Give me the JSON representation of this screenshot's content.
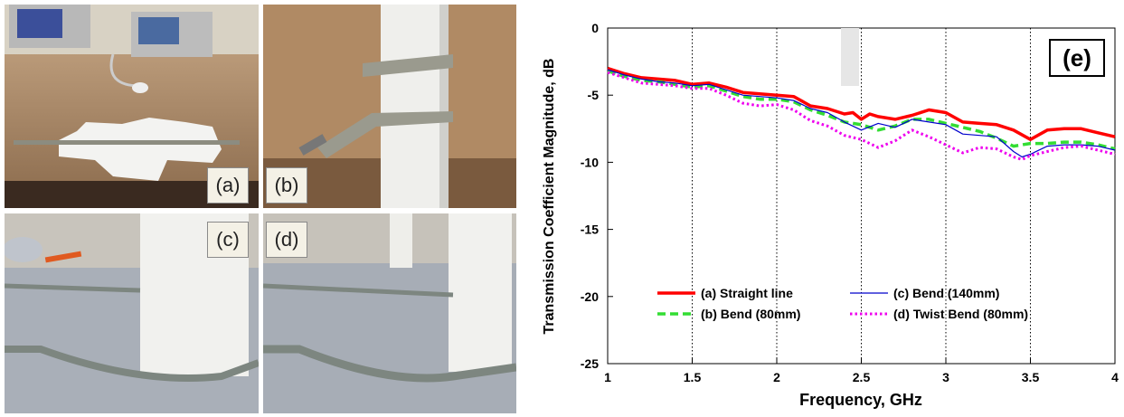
{
  "panels": [
    {
      "label": "(a)",
      "icon": "straight-line-setup-photo"
    },
    {
      "label": "(b)",
      "icon": "bend-80mm-photo"
    },
    {
      "label": "(c)",
      "icon": "bend-140mm-photo"
    },
    {
      "label": "(d)",
      "icon": "twist-bend-photo"
    }
  ],
  "chart_data": {
    "type": "line",
    "title": "",
    "panel_label": "(e)",
    "xlabel": "Frequency, GHz",
    "ylabel": "Transmission Coefficient Magnitude, dB",
    "xlim": [
      1,
      4
    ],
    "ylim": [
      -25,
      0
    ],
    "xticks": [
      "1",
      "1.5",
      "2",
      "2.5",
      "3",
      "3.5",
      "4"
    ],
    "yticks": [
      "0",
      "-5",
      "-10",
      "-15",
      "-20",
      "-25"
    ],
    "grid": "vertical dotted",
    "legend_placement": "lower-center",
    "series": [
      {
        "name": "(a) Straight line",
        "color": "#ff0000",
        "style": "solid-thick",
        "x": [
          1.0,
          1.1,
          1.2,
          1.3,
          1.4,
          1.5,
          1.6,
          1.7,
          1.8,
          1.9,
          2.0,
          2.1,
          2.2,
          2.3,
          2.4,
          2.45,
          2.5,
          2.55,
          2.6,
          2.7,
          2.8,
          2.9,
          3.0,
          3.1,
          3.2,
          3.3,
          3.4,
          3.5,
          3.6,
          3.7,
          3.8,
          3.9,
          4.0
        ],
        "y": [
          -3.0,
          -3.4,
          -3.7,
          -3.8,
          -3.9,
          -4.2,
          -4.1,
          -4.4,
          -4.8,
          -4.9,
          -5.0,
          -5.1,
          -5.8,
          -6.0,
          -6.4,
          -6.3,
          -6.8,
          -6.4,
          -6.6,
          -6.8,
          -6.5,
          -6.1,
          -6.3,
          -7.0,
          -7.1,
          -7.2,
          -7.6,
          -8.3,
          -7.6,
          -7.5,
          -7.5,
          -7.8,
          -8.1
        ]
      },
      {
        "name": "(b) Bend (80mm)",
        "color": "#33dd33",
        "style": "dashed-thick",
        "x": [
          1.0,
          1.1,
          1.2,
          1.3,
          1.4,
          1.5,
          1.6,
          1.7,
          1.8,
          1.9,
          2.0,
          2.1,
          2.2,
          2.3,
          2.4,
          2.5,
          2.6,
          2.7,
          2.8,
          2.9,
          3.0,
          3.1,
          3.2,
          3.3,
          3.4,
          3.5,
          3.6,
          3.7,
          3.8,
          3.9,
          4.0
        ],
        "y": [
          -3.2,
          -3.6,
          -3.9,
          -4.0,
          -4.2,
          -4.4,
          -4.3,
          -4.7,
          -5.1,
          -5.3,
          -5.3,
          -5.5,
          -6.1,
          -6.5,
          -7.0,
          -7.2,
          -7.6,
          -7.3,
          -6.8,
          -6.8,
          -7.1,
          -7.4,
          -7.7,
          -8.2,
          -8.8,
          -8.6,
          -8.6,
          -8.5,
          -8.5,
          -8.7,
          -9.0
        ]
      },
      {
        "name": "(c) Bend (140mm)",
        "color": "#0000cc",
        "style": "solid-thin",
        "x": [
          1.0,
          1.1,
          1.2,
          1.3,
          1.4,
          1.5,
          1.6,
          1.7,
          1.8,
          1.9,
          2.0,
          2.1,
          2.2,
          2.3,
          2.4,
          2.5,
          2.6,
          2.7,
          2.8,
          2.9,
          3.0,
          3.1,
          3.2,
          3.3,
          3.4,
          3.45,
          3.5,
          3.6,
          3.7,
          3.8,
          3.9,
          4.0
        ],
        "y": [
          -3.1,
          -3.5,
          -3.8,
          -4.0,
          -4.1,
          -4.3,
          -4.2,
          -4.6,
          -5.0,
          -5.1,
          -5.2,
          -5.4,
          -6.0,
          -6.3,
          -7.0,
          -7.6,
          -7.1,
          -7.4,
          -6.8,
          -7.0,
          -7.2,
          -7.9,
          -8.0,
          -8.1,
          -9.2,
          -9.6,
          -9.4,
          -8.8,
          -8.7,
          -8.7,
          -8.8,
          -9.1
        ]
      },
      {
        "name": "(d) Twist Bend (80mm)",
        "color": "#ee00ee",
        "style": "dotted-thick",
        "x": [
          1.0,
          1.1,
          1.2,
          1.3,
          1.4,
          1.5,
          1.6,
          1.7,
          1.8,
          1.9,
          2.0,
          2.1,
          2.2,
          2.3,
          2.4,
          2.5,
          2.6,
          2.7,
          2.8,
          2.9,
          3.0,
          3.1,
          3.2,
          3.3,
          3.4,
          3.45,
          3.5,
          3.6,
          3.7,
          3.8,
          3.9,
          4.0
        ],
        "y": [
          -3.3,
          -3.7,
          -4.1,
          -4.2,
          -4.3,
          -4.5,
          -4.5,
          -5.0,
          -5.6,
          -5.8,
          -5.7,
          -6.1,
          -6.9,
          -7.3,
          -8.0,
          -8.3,
          -8.9,
          -8.4,
          -7.6,
          -8.1,
          -8.7,
          -9.3,
          -8.9,
          -9.0,
          -9.6,
          -9.8,
          -9.5,
          -9.2,
          -8.9,
          -8.8,
          -9.1,
          -9.4
        ]
      }
    ]
  }
}
